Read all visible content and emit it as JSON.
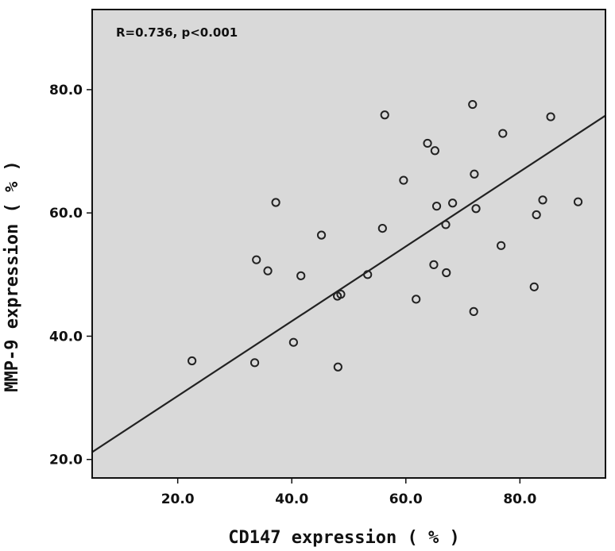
{
  "chart_data": {
    "type": "scatter",
    "title": "",
    "xlabel": "CD147 expression ( % )",
    "ylabel": "MMP-9 expression ( % )",
    "annotation": "R=0.736, p<0.001",
    "xlim": [
      5,
      95
    ],
    "ylim": [
      17,
      93
    ],
    "x_ticks": [
      20,
      40,
      60,
      80
    ],
    "y_ticks": [
      20,
      40,
      60,
      80
    ],
    "x_tick_labels": [
      "20.0",
      "40.0",
      "60.0",
      "80.0"
    ],
    "y_tick_labels": [
      "20.0",
      "40.0",
      "60.0",
      "80.0"
    ],
    "grid": false,
    "legend": "none",
    "colors": {
      "plot_background": "#d9d9d9",
      "marker": "#222222",
      "fit_line": "#222222"
    },
    "points": [
      {
        "x": 22.5,
        "y": 36.0
      },
      {
        "x": 33.5,
        "y": 35.7
      },
      {
        "x": 33.8,
        "y": 52.4
      },
      {
        "x": 35.8,
        "y": 50.6
      },
      {
        "x": 37.2,
        "y": 61.7
      },
      {
        "x": 40.3,
        "y": 39.0
      },
      {
        "x": 41.6,
        "y": 49.8
      },
      {
        "x": 45.2,
        "y": 56.4
      },
      {
        "x": 48.0,
        "y": 46.5
      },
      {
        "x": 48.6,
        "y": 46.8
      },
      {
        "x": 48.1,
        "y": 35.0
      },
      {
        "x": 53.3,
        "y": 50.0
      },
      {
        "x": 55.9,
        "y": 57.5
      },
      {
        "x": 56.3,
        "y": 75.9
      },
      {
        "x": 59.6,
        "y": 65.3
      },
      {
        "x": 61.8,
        "y": 46.0
      },
      {
        "x": 63.8,
        "y": 71.3
      },
      {
        "x": 65.1,
        "y": 70.1
      },
      {
        "x": 65.4,
        "y": 61.1
      },
      {
        "x": 64.9,
        "y": 51.6
      },
      {
        "x": 67.0,
        "y": 58.1
      },
      {
        "x": 67.1,
        "y": 50.3
      },
      {
        "x": 68.2,
        "y": 61.6
      },
      {
        "x": 71.7,
        "y": 77.6
      },
      {
        "x": 72.0,
        "y": 66.3
      },
      {
        "x": 72.3,
        "y": 60.7
      },
      {
        "x": 71.9,
        "y": 44.0
      },
      {
        "x": 76.7,
        "y": 54.7
      },
      {
        "x": 77.0,
        "y": 72.9
      },
      {
        "x": 82.5,
        "y": 48.0
      },
      {
        "x": 82.9,
        "y": 59.7
      },
      {
        "x": 84.0,
        "y": 62.1
      },
      {
        "x": 85.4,
        "y": 75.6
      },
      {
        "x": 90.2,
        "y": 61.8
      }
    ],
    "fit_line": {
      "x": [
        5,
        95
      ],
      "y": [
        21.2,
        75.8
      ]
    }
  }
}
